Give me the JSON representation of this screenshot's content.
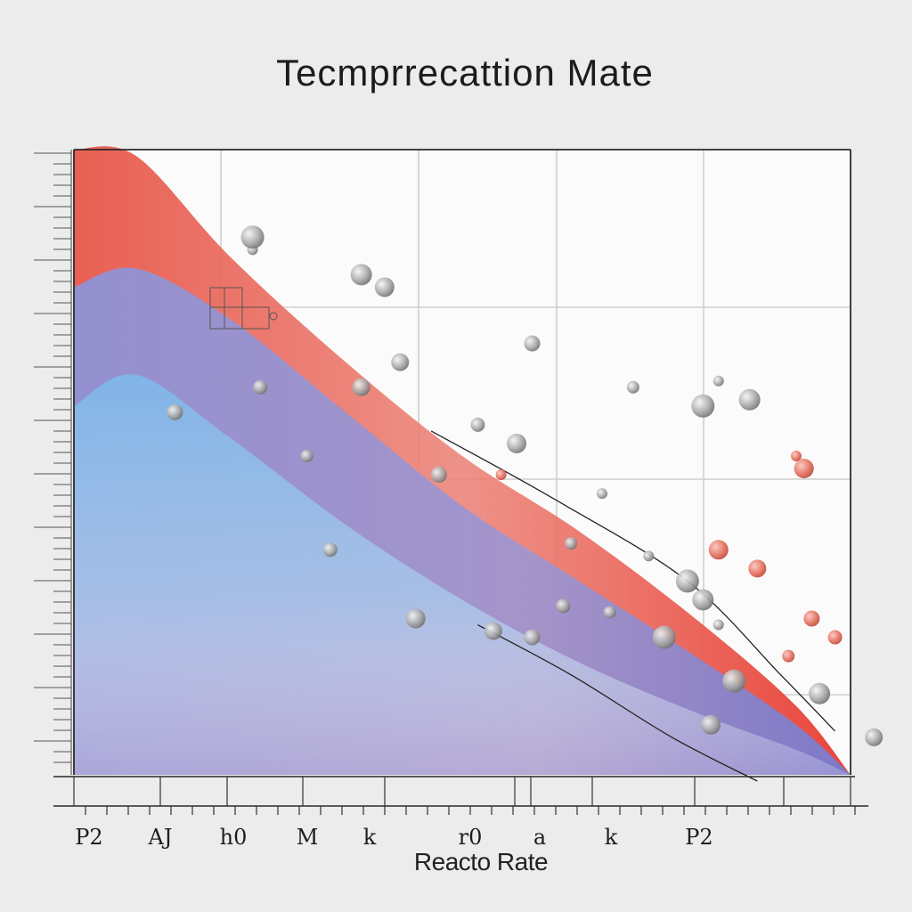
{
  "chart_data": {
    "type": "area",
    "title": "Tecmprrecattion  Mate",
    "xlabel": "Reacto Rate",
    "ylabel": "",
    "x_tick_labels": [
      "P2",
      "AJ",
      "h0",
      "M",
      "k",
      "r0",
      "a",
      "k",
      "P2"
    ],
    "xlim": [
      0,
      10
    ],
    "ylim": [
      0,
      10
    ],
    "grid": true,
    "legend": "none",
    "series": [
      {
        "color": "#e8574a",
        "x": [
          0,
          0.8,
          2,
          3.5,
          5,
          6.5,
          8,
          9.3,
          10
        ],
        "y": [
          10,
          9.9,
          8.3,
          6.6,
          5.1,
          3.9,
          2.5,
          1.1,
          0
        ]
      },
      {
        "color": "#8f93d6",
        "x": [
          0,
          0.8,
          2,
          3.5,
          5,
          6.5,
          8,
          9.3,
          10
        ],
        "y": [
          7.8,
          8.1,
          7.3,
          5.8,
          4.3,
          3.1,
          1.9,
          0.8,
          0
        ]
      },
      {
        "color": "#5e9ddf",
        "x": [
          0,
          0.8,
          2,
          3.5,
          5,
          6.5,
          8,
          9.3,
          10
        ],
        "y": [
          5.9,
          6.4,
          5.4,
          4.0,
          2.8,
          1.8,
          1.0,
          0.4,
          0
        ]
      }
    ],
    "particles": {
      "gray": [
        [
          2.3,
          8.4
        ],
        [
          2.3,
          8.6
        ],
        [
          3.7,
          8.0
        ],
        [
          4.0,
          7.8
        ],
        [
          3.7,
          6.2
        ],
        [
          5.9,
          6.9
        ],
        [
          5.2,
          5.6
        ],
        [
          7.2,
          6.2
        ],
        [
          8.3,
          6.3
        ],
        [
          8.1,
          5.9
        ],
        [
          8.7,
          6.0
        ],
        [
          5.7,
          5.3
        ],
        [
          4.2,
          6.6
        ],
        [
          4.7,
          4.8
        ],
        [
          3.3,
          3.6
        ],
        [
          6.4,
          3.7
        ],
        [
          7.4,
          3.5
        ],
        [
          7.9,
          3.1
        ],
        [
          8.1,
          2.8
        ],
        [
          4.4,
          2.5
        ],
        [
          5.4,
          2.3
        ],
        [
          5.9,
          2.2
        ],
        [
          6.3,
          2.7
        ],
        [
          6.9,
          2.6
        ],
        [
          8.3,
          2.4
        ],
        [
          8.5,
          1.5
        ],
        [
          9.6,
          1.3
        ],
        [
          8.2,
          0.8
        ],
        [
          10.3,
          0.6
        ],
        [
          1.3,
          5.8
        ],
        [
          2.4,
          6.2
        ],
        [
          3.0,
          5.1
        ],
        [
          6.8,
          4.5
        ],
        [
          7.6,
          2.2
        ]
      ],
      "red": [
        [
          9.3,
          5.1
        ],
        [
          9.4,
          4.9
        ],
        [
          8.8,
          3.3
        ],
        [
          9.5,
          2.5
        ],
        [
          9.8,
          2.2
        ],
        [
          9.2,
          1.9
        ],
        [
          5.5,
          4.8
        ],
        [
          8.3,
          3.6
        ]
      ]
    }
  }
}
